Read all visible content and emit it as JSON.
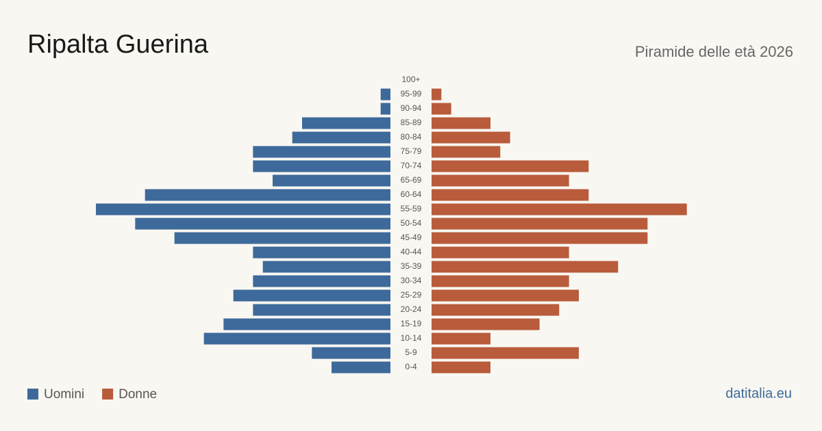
{
  "chart_data": {
    "type": "pyramid",
    "title": "Ripalta Guerina",
    "subtitle": "Piramide delle età 2026",
    "source": "datitalia.eu",
    "categories": [
      "100+",
      "95-99",
      "90-94",
      "85-89",
      "80-84",
      "75-79",
      "70-74",
      "65-69",
      "60-64",
      "55-59",
      "50-54",
      "45-49",
      "40-44",
      "35-39",
      "30-34",
      "25-29",
      "20-24",
      "15-19",
      "10-14",
      "5-9",
      "0-4"
    ],
    "series": [
      {
        "name": "Uomini",
        "color": "#3d6a9a",
        "values": [
          0,
          1,
          1,
          9,
          10,
          14,
          14,
          12,
          25,
          30,
          26,
          22,
          14,
          13,
          14,
          16,
          14,
          17,
          19,
          8,
          6
        ]
      },
      {
        "name": "Donne",
        "color": "#b85c3c",
        "values": [
          0,
          1,
          2,
          6,
          8,
          7,
          16,
          14,
          16,
          26,
          22,
          22,
          14,
          19,
          14,
          15,
          13,
          11,
          6,
          15,
          6
        ]
      }
    ]
  }
}
